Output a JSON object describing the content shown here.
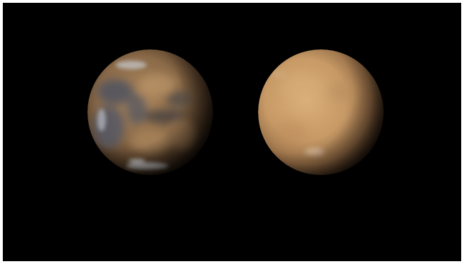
{
  "image": {
    "background_color": "#000000",
    "frame_border_color": "#ffffff",
    "planets": [
      {
        "name": "mars-clear",
        "base_color": "#8a6a48",
        "highlight_color": "#b08a60",
        "dark_region_color": "#4f5360",
        "polar_cap_color": "#d8dde4"
      },
      {
        "name": "mars-dust-storm",
        "base_color": "#c79a66",
        "highlight_color": "#d8ad78",
        "dark_region_color": "#7a5838"
      }
    ]
  }
}
